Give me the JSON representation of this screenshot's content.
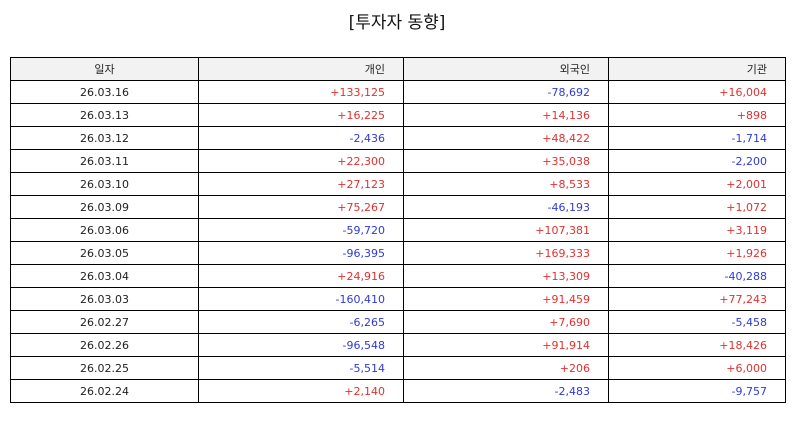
{
  "title": "[투자자 동향]",
  "colors": {
    "positive": "#e0312f",
    "negative": "#2f3ad6",
    "header_bg": "#f2f2f2"
  },
  "table": {
    "headers": [
      "일자",
      "개인",
      "외국인",
      "기관"
    ],
    "rows": [
      [
        "26.03.16",
        "+133,125",
        "-78,692",
        "+16,004"
      ],
      [
        "26.03.13",
        "+16,225",
        "+14,136",
        "+898"
      ],
      [
        "26.03.12",
        "-2,436",
        "+48,422",
        "-1,714"
      ],
      [
        "26.03.11",
        "+22,300",
        "+35,038",
        "-2,200"
      ],
      [
        "26.03.10",
        "+27,123",
        "+8,533",
        "+2,001"
      ],
      [
        "26.03.09",
        "+75,267",
        "-46,193",
        "+1,072"
      ],
      [
        "26.03.06",
        "-59,720",
        "+107,381",
        "+3,119"
      ],
      [
        "26.03.05",
        "-96,395",
        "+169,333",
        "+1,926"
      ],
      [
        "26.03.04",
        "+24,916",
        "+13,309",
        "-40,288"
      ],
      [
        "26.03.03",
        "-160,410",
        "+91,459",
        "+77,243"
      ],
      [
        "26.02.27",
        "-6,265",
        "+7,690",
        "-5,458"
      ],
      [
        "26.02.26",
        "-96,548",
        "+91,914",
        "+18,426"
      ],
      [
        "26.02.25",
        "-5,514",
        "+206",
        "+6,000"
      ],
      [
        "26.02.24",
        "+2,140",
        "-2,483",
        "-9,757"
      ]
    ]
  }
}
